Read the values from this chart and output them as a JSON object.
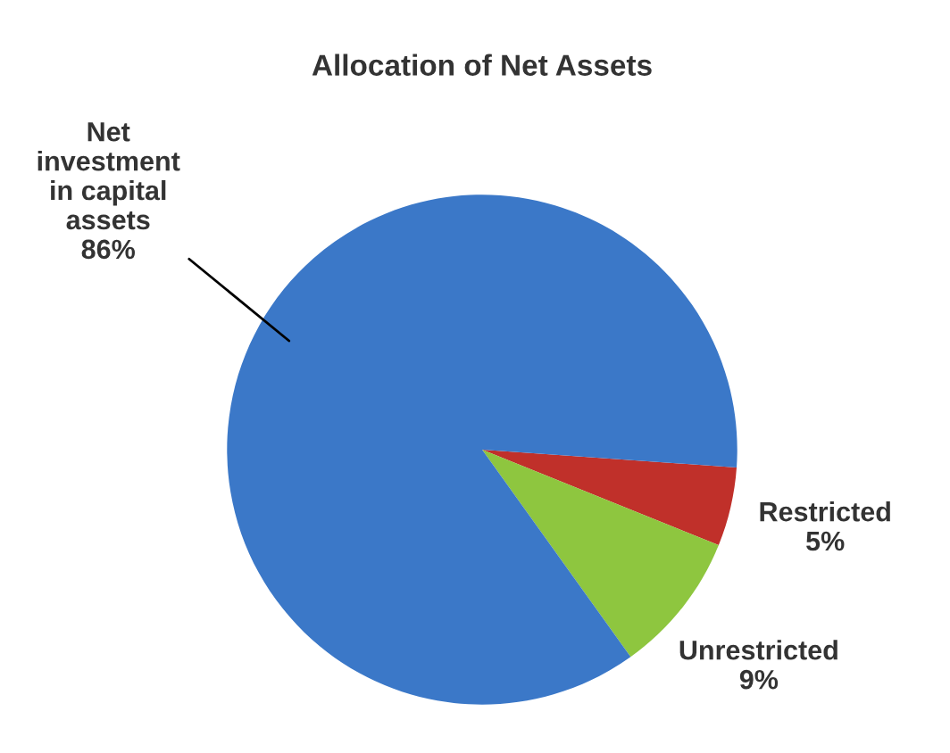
{
  "chart_data": {
    "type": "pie",
    "title": "Allocation of Net Assets",
    "categories": [
      "Restricted",
      "Unrestricted",
      "Net investment in capital assets"
    ],
    "values": [
      5,
      9,
      86
    ],
    "value_labels": [
      "5%",
      "9%",
      "86%"
    ],
    "colors": [
      "#c0302a",
      "#8ec63f",
      "#3b78c8"
    ],
    "legend": false
  }
}
